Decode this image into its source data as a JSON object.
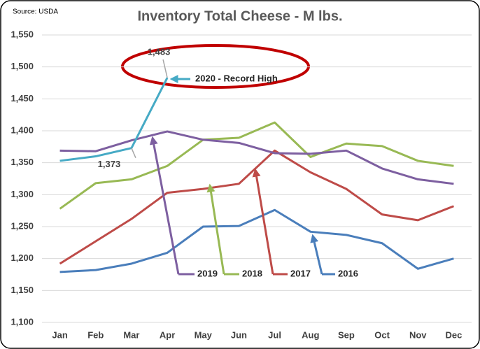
{
  "chart_data": {
    "type": "line",
    "title": "Inventory Total Cheese - M lbs.",
    "source": "Source: USDA",
    "categories": [
      "Jan",
      "Feb",
      "Mar",
      "Apr",
      "May",
      "Jun",
      "Jul",
      "Aug",
      "Sep",
      "Oct",
      "Nov",
      "Dec"
    ],
    "series": [
      {
        "name": "2016",
        "color": "#4a7ebb",
        "values": [
          1179,
          1182,
          1192,
          1209,
          1250,
          1251,
          1276,
          1242,
          1237,
          1224,
          1184,
          1200
        ]
      },
      {
        "name": "2017",
        "color": "#be4b48",
        "values": [
          1192,
          1227,
          1262,
          1303,
          1309,
          1317,
          1369,
          1335,
          1309,
          1269,
          1260,
          1282
        ]
      },
      {
        "name": "2018",
        "color": "#98b954",
        "values": [
          1278,
          1318,
          1324,
          1345,
          1386,
          1389,
          1413,
          1359,
          1380,
          1376,
          1353,
          1345
        ]
      },
      {
        "name": "2019",
        "color": "#7d5fa0",
        "values": [
          1369,
          1368,
          1385,
          1399,
          1386,
          1381,
          1365,
          1364,
          1369,
          1341,
          1324,
          1317
        ]
      },
      {
        "name": "2020 - Record High",
        "color": "#46aac5",
        "values": [
          1353,
          1360,
          1373,
          1483,
          null,
          null,
          null,
          null,
          null,
          null,
          null,
          null
        ],
        "value_labels": [
          null,
          null,
          "1,373",
          "1,483",
          null,
          null,
          null,
          null,
          null,
          null,
          null,
          null
        ]
      }
    ],
    "ylim": [
      1100,
      1550
    ],
    "yticks": [
      {
        "value": 1100,
        "label": "1,100"
      },
      {
        "value": 1150,
        "label": "1,150"
      },
      {
        "value": 1200,
        "label": "1,200"
      },
      {
        "value": 1250,
        "label": "1,250"
      },
      {
        "value": 1300,
        "label": "1,300"
      },
      {
        "value": 1350,
        "label": "1,350"
      },
      {
        "value": 1400,
        "label": "1,400"
      },
      {
        "value": 1450,
        "label": "1,450"
      },
      {
        "value": 1500,
        "label": "1,500"
      },
      {
        "value": 1550,
        "label": "1,550"
      }
    ],
    "grid": true
  }
}
